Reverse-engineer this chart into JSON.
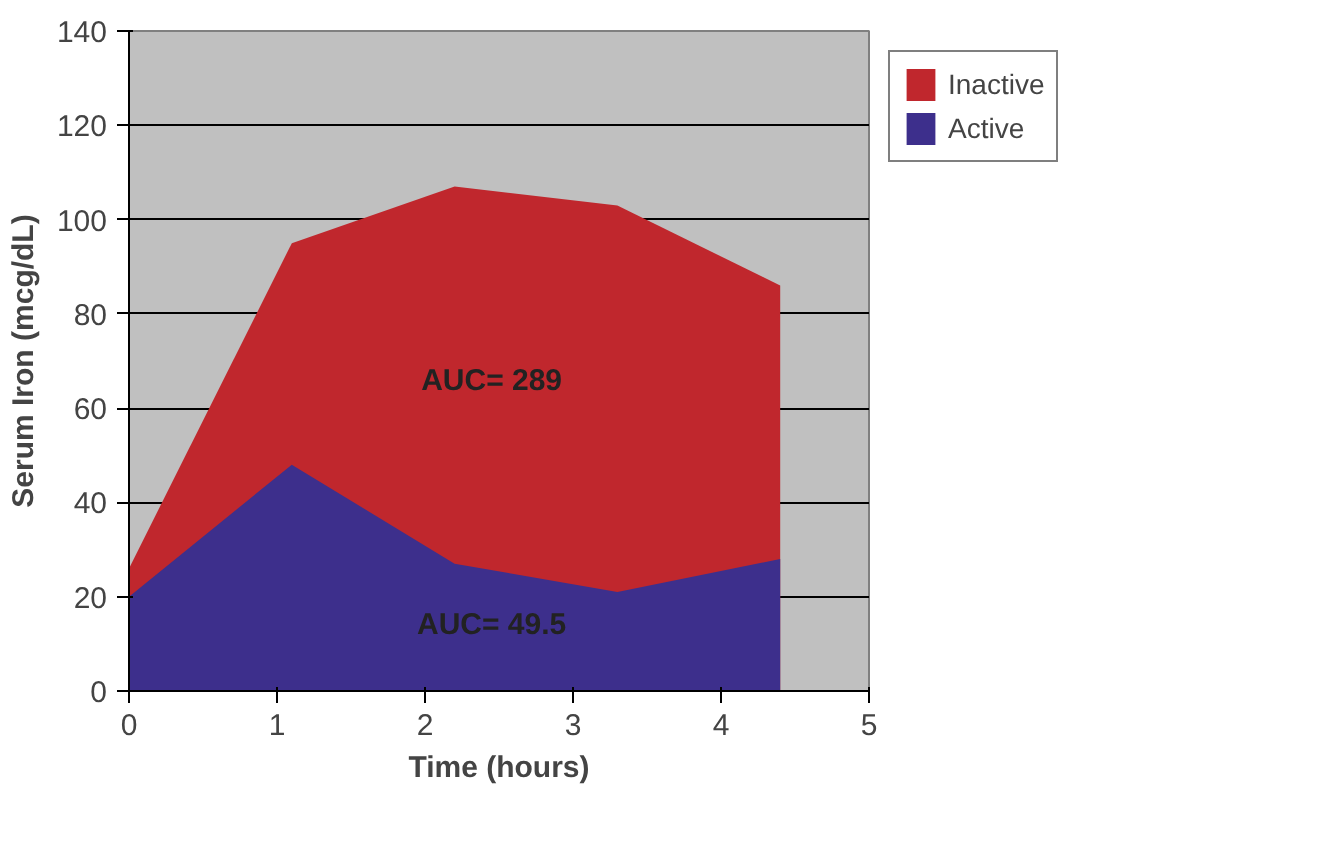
{
  "chart_data": {
    "type": "area",
    "xlabel": "Time (hours)",
    "ylabel": "Serum Iron (mcg/dL)",
    "x": [
      0,
      1.1,
      2.2,
      3.3,
      4.4
    ],
    "series": [
      {
        "name": "Inactive",
        "color": "#c0272d",
        "values": [
          26,
          95,
          107,
          103,
          86
        ]
      },
      {
        "name": "Active",
        "color": "#3d2f8c",
        "values": [
          20,
          48,
          27,
          21,
          28
        ]
      }
    ],
    "xlim": [
      0,
      5
    ],
    "xticks": [
      0,
      1,
      2,
      3,
      4,
      5
    ],
    "ylim": [
      0,
      140
    ],
    "yticks": [
      0,
      20,
      40,
      60,
      80,
      100,
      120,
      140
    ],
    "grid": "y",
    "legend": "right",
    "annotations": [
      "AUC= 289",
      "AUC= 49.5"
    ]
  }
}
